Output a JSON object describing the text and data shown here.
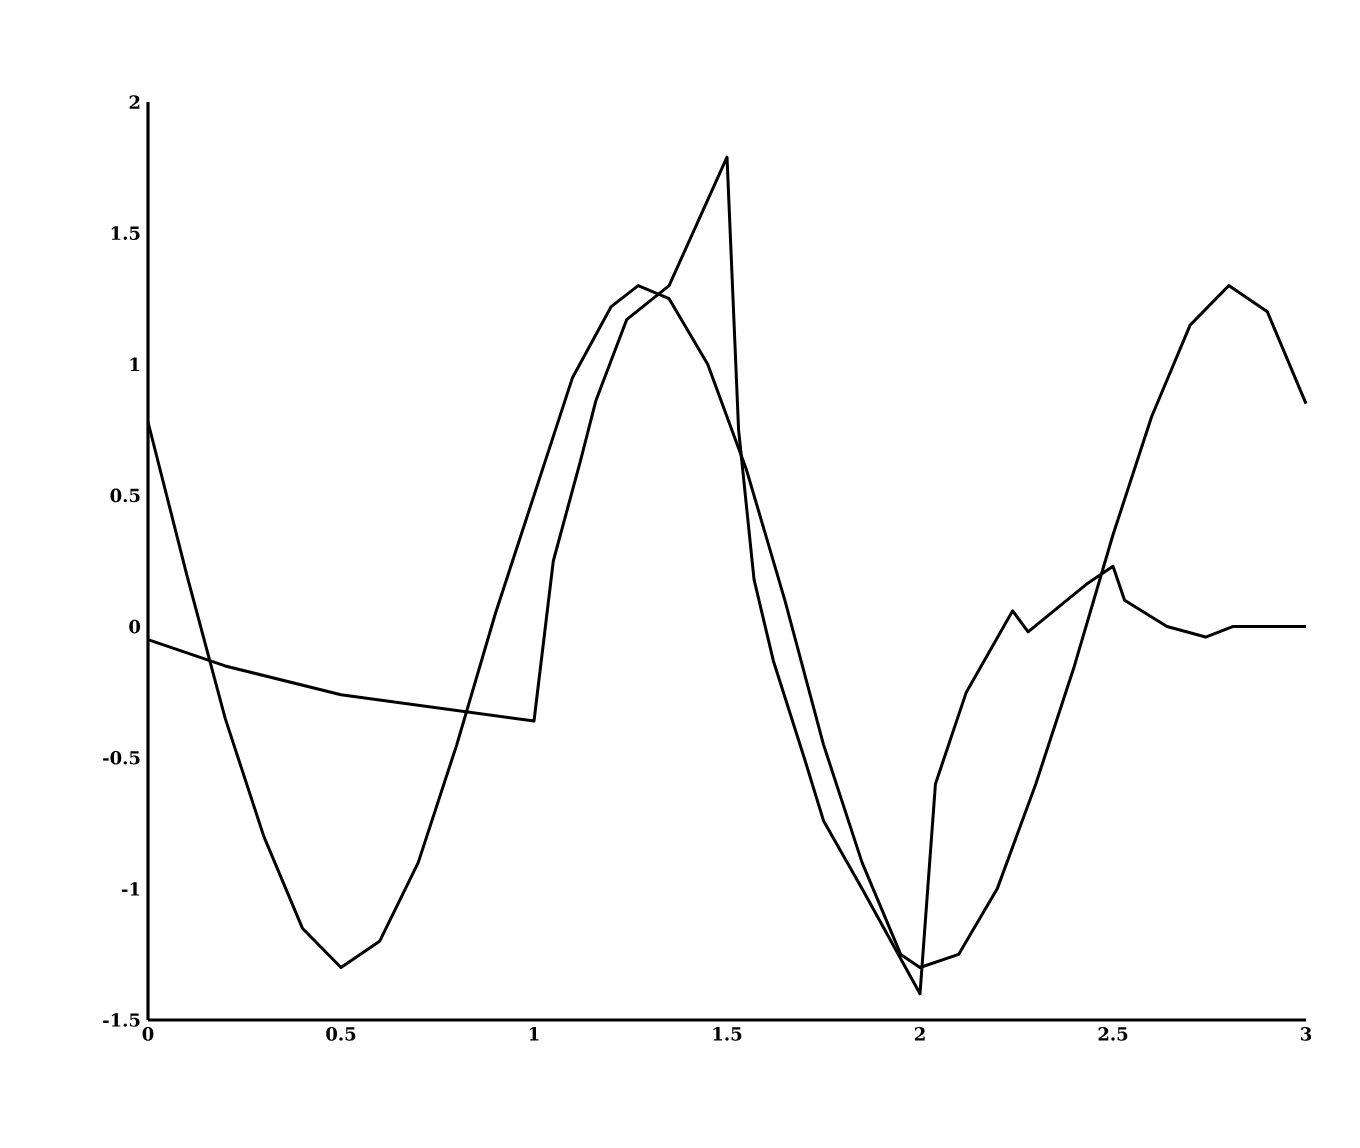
{
  "chart_data": {
    "type": "line",
    "xlim": [
      0,
      3
    ],
    "ylim": [
      -1.5,
      2
    ],
    "xticks": [
      0,
      0.5,
      1,
      1.5,
      2,
      2.5,
      3
    ],
    "yticks": [
      -1.5,
      -1,
      -0.5,
      0,
      0.5,
      1,
      1.5,
      2
    ],
    "grid": false,
    "marker": "none",
    "line_style": "solid",
    "series": [
      {
        "color": "#000000",
        "x": [
          0,
          0.1,
          0.2,
          0.3,
          0.4,
          0.5,
          0.6,
          0.7,
          0.8,
          0.9,
          1.0,
          1.1,
          1.2,
          1.27,
          1.35,
          1.45,
          1.55,
          1.65,
          1.75,
          1.85,
          1.95,
          2.0,
          2.1,
          2.2,
          2.3,
          2.4,
          2.5,
          2.6,
          2.7,
          2.8,
          2.9,
          3.0
        ],
        "values": [
          0.78,
          0.2,
          -0.35,
          -0.8,
          -1.15,
          -1.3,
          -1.2,
          -0.9,
          -0.45,
          0.05,
          0.5,
          0.95,
          1.22,
          1.3,
          1.25,
          1.0,
          0.6,
          0.1,
          -0.45,
          -0.9,
          -1.25,
          -1.3,
          -1.25,
          -1.0,
          -0.6,
          -0.15,
          0.35,
          0.8,
          1.15,
          1.3,
          1.2,
          0.85
        ]
      },
      {
        "color": "#000000",
        "x": [
          0,
          0.2,
          0.5,
          1.0,
          1.05,
          1.12,
          1.16,
          1.24,
          1.35,
          1.5,
          1.53,
          1.57,
          1.62,
          1.7,
          1.75,
          1.85,
          2.0,
          2.04,
          2.12,
          2.24,
          2.28,
          2.43,
          2.5,
          2.53,
          2.64,
          2.74,
          2.81,
          3.0
        ],
        "values": [
          -0.05,
          -0.15,
          -0.26,
          -0.36,
          0.25,
          0.63,
          0.86,
          1.17,
          1.3,
          1.79,
          0.75,
          0.18,
          -0.13,
          -0.5,
          -0.74,
          -1.0,
          -1.4,
          -0.6,
          -0.25,
          0.06,
          -0.02,
          0.16,
          0.23,
          0.1,
          0.0,
          -0.04,
          0.0,
          0.0
        ]
      }
    ]
  }
}
